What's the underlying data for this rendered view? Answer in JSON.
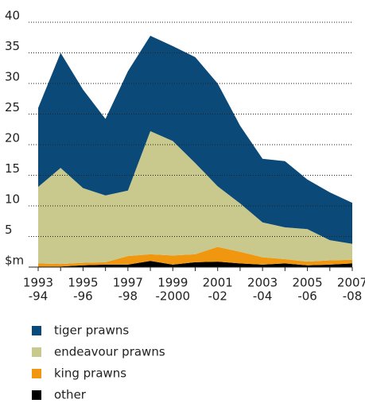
{
  "chart_data": {
    "type": "stacked_area",
    "categories": [
      [
        "1993",
        "-94"
      ],
      null,
      [
        "1995",
        "-96"
      ],
      null,
      [
        "1997",
        "-98"
      ],
      null,
      [
        "1999",
        "-2000"
      ],
      null,
      [
        "2001",
        "-02"
      ],
      null,
      [
        "2003",
        "-04"
      ],
      null,
      [
        "2005",
        "-06"
      ],
      null,
      [
        "2007",
        "-08"
      ]
    ],
    "series": [
      {
        "name": "tiger prawns",
        "color": "#0b4a78",
        "values": [
          12.9,
          18.8,
          16.1,
          12.5,
          19.5,
          15.6,
          15.5,
          17.3,
          16.8,
          12.7,
          10.4,
          10.8,
          8.1,
          7.8,
          6.7
        ]
      },
      {
        "name": "endeavour prawns",
        "color": "#c9c98e",
        "values": [
          12.5,
          15.7,
          12.2,
          10.9,
          10.7,
          20.1,
          18.7,
          14.9,
          9.9,
          7.9,
          5.7,
          5.2,
          5.3,
          3.3,
          2.6
        ]
      },
      {
        "name": "king prawns",
        "color": "#f0960f",
        "values": [
          0.5,
          0.4,
          0.4,
          0.4,
          1.4,
          1.1,
          1.5,
          1.3,
          2.4,
          1.9,
          1.2,
          0.7,
          0.6,
          0.7,
          0.6
        ]
      },
      {
        "name": "other",
        "color": "#000000",
        "values": [
          0.1,
          0.1,
          0.3,
          0.4,
          0.4,
          1.0,
          0.4,
          0.8,
          0.9,
          0.6,
          0.4,
          0.6,
          0.3,
          0.4,
          0.6
        ]
      }
    ],
    "ylim": [
      0,
      40
    ],
    "yticks": [
      {
        "value": 0,
        "label": "$m"
      },
      5,
      10,
      15,
      20,
      25,
      30,
      35,
      40
    ],
    "grid": true
  }
}
